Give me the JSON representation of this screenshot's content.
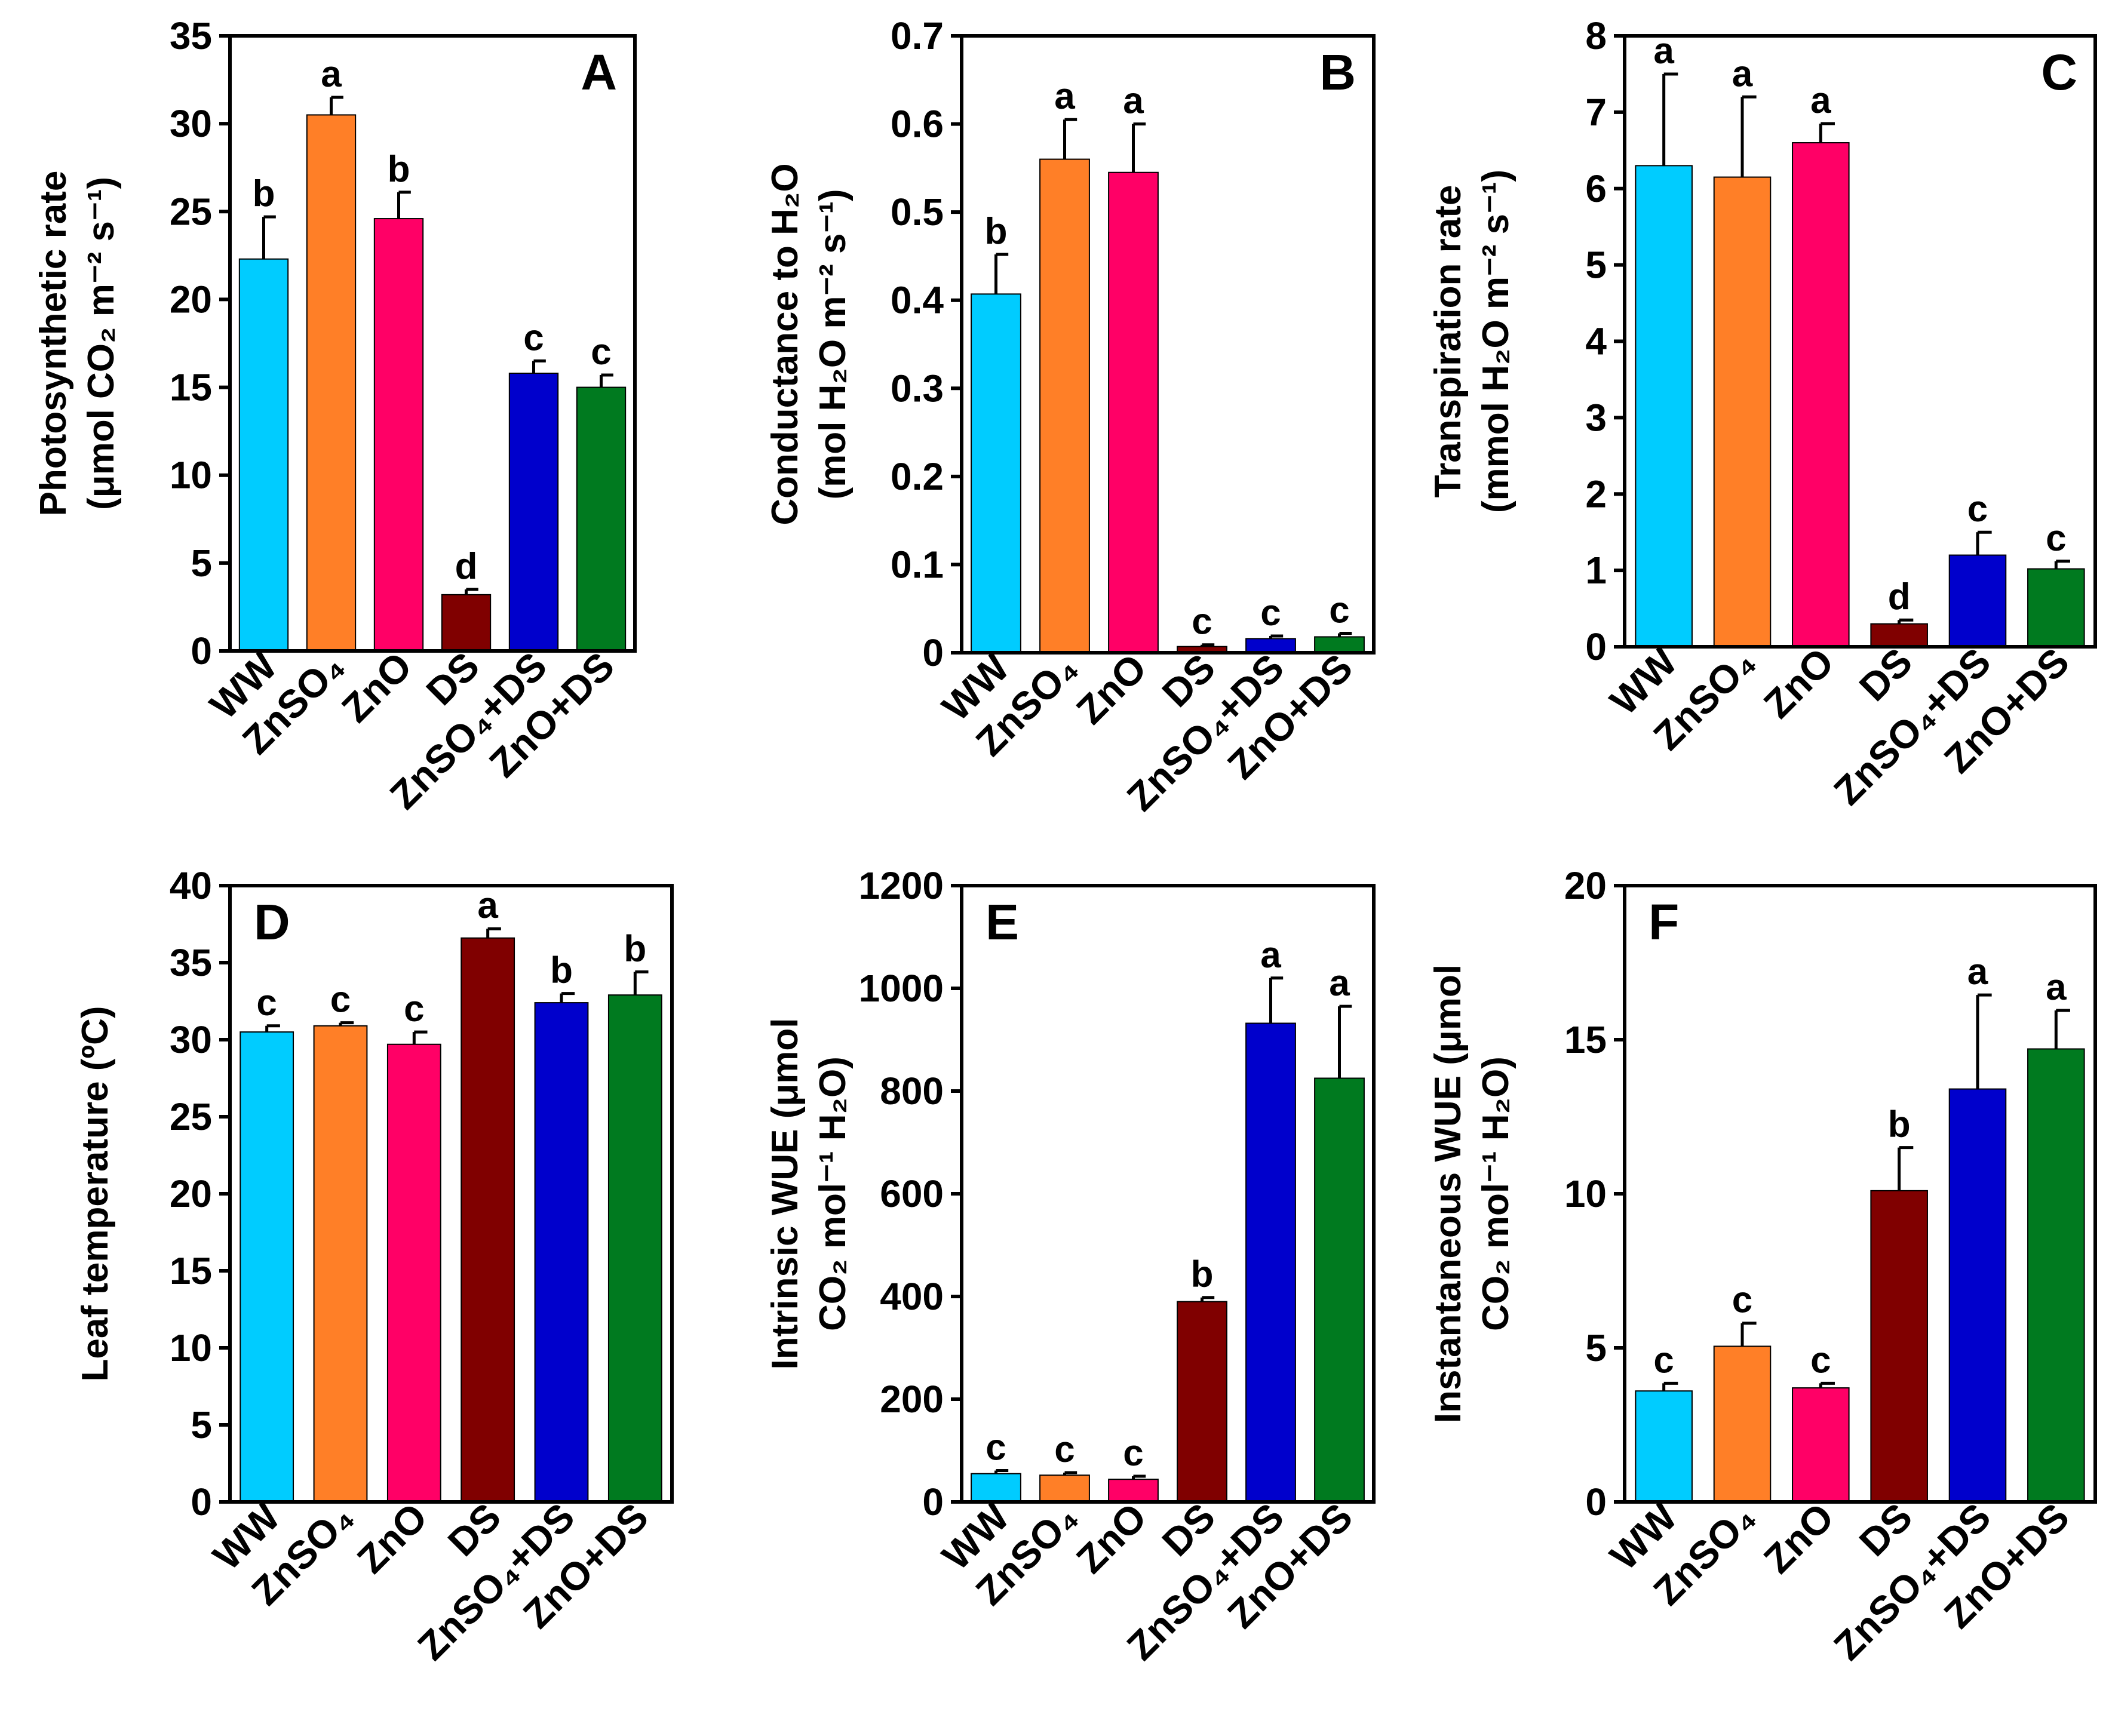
{
  "chart_data": [
    {
      "type": "bar",
      "panel_label": "A",
      "categories": [
        "WW",
        "ZnSO₄",
        "ZnO",
        "DS",
        "ZnSO₄+DS",
        "ZnO+DS"
      ],
      "colors": [
        "#00ccff",
        "#ff7f27",
        "#ff0066",
        "#800000",
        "#0000cc",
        "#007a1f"
      ],
      "values": [
        22.3,
        30.5,
        24.6,
        3.2,
        15.8,
        15.0
      ],
      "errors": [
        2.4,
        1.0,
        1.5,
        0.3,
        0.7,
        0.7
      ],
      "significance": [
        "b",
        "a",
        "b",
        "d",
        "c",
        "c"
      ],
      "ylim": [
        0,
        35
      ],
      "yticks": [
        0,
        5,
        10,
        15,
        20,
        25,
        30,
        35
      ],
      "ylabel": "Photosynthetic rate",
      "ylabel2": "(μmol CO₂ m⁻² s⁻¹)"
    },
    {
      "type": "bar",
      "panel_label": "B",
      "categories": [
        "WW",
        "ZnSO₄",
        "ZnO",
        "DS",
        "ZnSO₄+DS",
        "ZnO+DS"
      ],
      "colors": [
        "#00ccff",
        "#ff7f27",
        "#ff0066",
        "#800000",
        "#0000cc",
        "#007a1f"
      ],
      "values": [
        0.407,
        0.56,
        0.545,
        0.007,
        0.016,
        0.018
      ],
      "errors": [
        0.045,
        0.045,
        0.055,
        0.002,
        0.003,
        0.004
      ],
      "significance": [
        "b",
        "a",
        "a",
        "c",
        "c",
        "c"
      ],
      "ylim": [
        0,
        0.7
      ],
      "yticks": [
        "0",
        "0.1",
        "0.2",
        "0.3",
        "0.4",
        "0.5",
        "0.6",
        "0.7"
      ],
      "ylabel": "Conductance to H₂O",
      "ylabel2": "(mol H₂O m⁻² s⁻¹)"
    },
    {
      "type": "bar",
      "panel_label": "C",
      "categories": [
        "WW",
        "ZnSO₄",
        "ZnO",
        "DS",
        "ZnSO₄+DS",
        "ZnO+DS"
      ],
      "colors": [
        "#00ccff",
        "#ff7f27",
        "#ff0066",
        "#800000",
        "#0000cc",
        "#007a1f"
      ],
      "values": [
        6.3,
        6.15,
        6.6,
        0.3,
        1.2,
        1.02
      ],
      "errors": [
        1.2,
        1.05,
        0.25,
        0.05,
        0.3,
        0.1
      ],
      "significance": [
        "a",
        "a",
        "a",
        "d",
        "c",
        "c"
      ],
      "ylim": [
        0,
        8
      ],
      "yticks": [
        0,
        1,
        2,
        3,
        4,
        5,
        6,
        7,
        8
      ],
      "ylabel": "Transpiration rate",
      "ylabel2": "(mmol H₂O m⁻² s⁻¹)"
    },
    {
      "type": "bar",
      "panel_label": "D",
      "categories": [
        "WW",
        "ZnSO₄",
        "ZnO",
        "DS",
        "ZnSO₄+DS",
        "ZnO+DS"
      ],
      "colors": [
        "#00ccff",
        "#ff7f27",
        "#ff0066",
        "#800000",
        "#0000cc",
        "#007a1f"
      ],
      "values": [
        30.5,
        30.9,
        29.7,
        36.6,
        32.4,
        32.9
      ],
      "errors": [
        0.4,
        0.2,
        0.8,
        0.6,
        0.6,
        1.5
      ],
      "significance": [
        "c",
        "c",
        "c",
        "a",
        "b",
        "b"
      ],
      "ylim": [
        0,
        40
      ],
      "yticks": [
        0,
        5,
        10,
        15,
        20,
        25,
        30,
        35,
        40
      ],
      "ylabel": "Leaf temperature (ºC)",
      "ylabel2": ""
    },
    {
      "type": "bar",
      "panel_label": "E",
      "categories": [
        "WW",
        "ZnSO₄",
        "ZnO",
        "DS",
        "ZnSO₄+DS",
        "ZnO+DS"
      ],
      "colors": [
        "#00ccff",
        "#ff7f27",
        "#ff0066",
        "#800000",
        "#0000cc",
        "#007a1f"
      ],
      "values": [
        55,
        52,
        44,
        390,
        932,
        825
      ],
      "errors": [
        6,
        5,
        6,
        8,
        88,
        140
      ],
      "significance": [
        "c",
        "c",
        "c",
        "b",
        "a",
        "a"
      ],
      "ylim": [
        0,
        1200
      ],
      "yticks": [
        0,
        200,
        400,
        600,
        800,
        1000,
        1200
      ],
      "ylabel": "Intrinsic WUE (μmol",
      "ylabel2": "CO₂ mol⁻¹ H₂O)"
    },
    {
      "type": "bar",
      "panel_label": "F",
      "categories": [
        "WW",
        "ZnSO₄",
        "ZnO",
        "DS",
        "ZnSO₄+DS",
        "ZnO+DS"
      ],
      "colors": [
        "#00ccff",
        "#ff7f27",
        "#ff0066",
        "#800000",
        "#0000cc",
        "#007a1f"
      ],
      "values": [
        3.6,
        5.05,
        3.7,
        10.1,
        13.4,
        14.7
      ],
      "errors": [
        0.25,
        0.75,
        0.15,
        1.4,
        3.05,
        1.25
      ],
      "significance": [
        "c",
        "c",
        "c",
        "b",
        "a",
        "a"
      ],
      "ylim": [
        0,
        20
      ],
      "yticks": [
        0,
        5,
        10,
        15,
        20
      ],
      "ylabel": "Instantaneous WUE (μmol",
      "ylabel2": "CO₂ mol⁻¹ H₂O)"
    }
  ]
}
